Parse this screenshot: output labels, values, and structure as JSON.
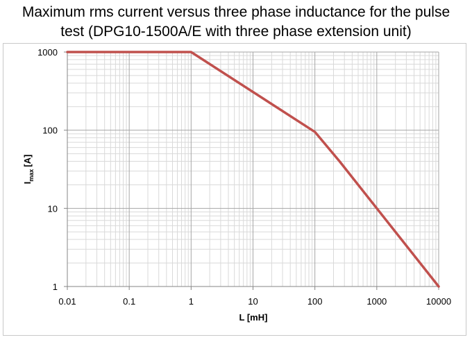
{
  "title": {
    "line1": "Maximum rms current versus three phase inductance for the pulse",
    "line2": "test (DPG10-1500A/E with three phase extension unit)"
  },
  "chart_data": {
    "type": "line",
    "title": "Maximum rms current versus three phase inductance for the pulse test (DPG10-1500A/E with three phase extension unit)",
    "xlabel": "L [mH]",
    "ylabel_main": "I",
    "ylabel_sub": "max",
    "ylabel_unit": "[A]",
    "xscale": "log",
    "yscale": "log",
    "xlim": [
      0.01,
      10000
    ],
    "ylim": [
      1,
      1000
    ],
    "xticks": [
      "0.01",
      "0.1",
      "1",
      "10",
      "100",
      "1000",
      "10000"
    ],
    "yticks": [
      "1",
      "10",
      "100",
      "1000"
    ],
    "grid": true,
    "legend": "none",
    "series": [
      {
        "color": "#c0504d",
        "x": [
          0.01,
          1,
          100,
          250,
          10000
        ],
        "y": [
          1000,
          1000,
          95,
          40,
          1
        ]
      }
    ]
  }
}
